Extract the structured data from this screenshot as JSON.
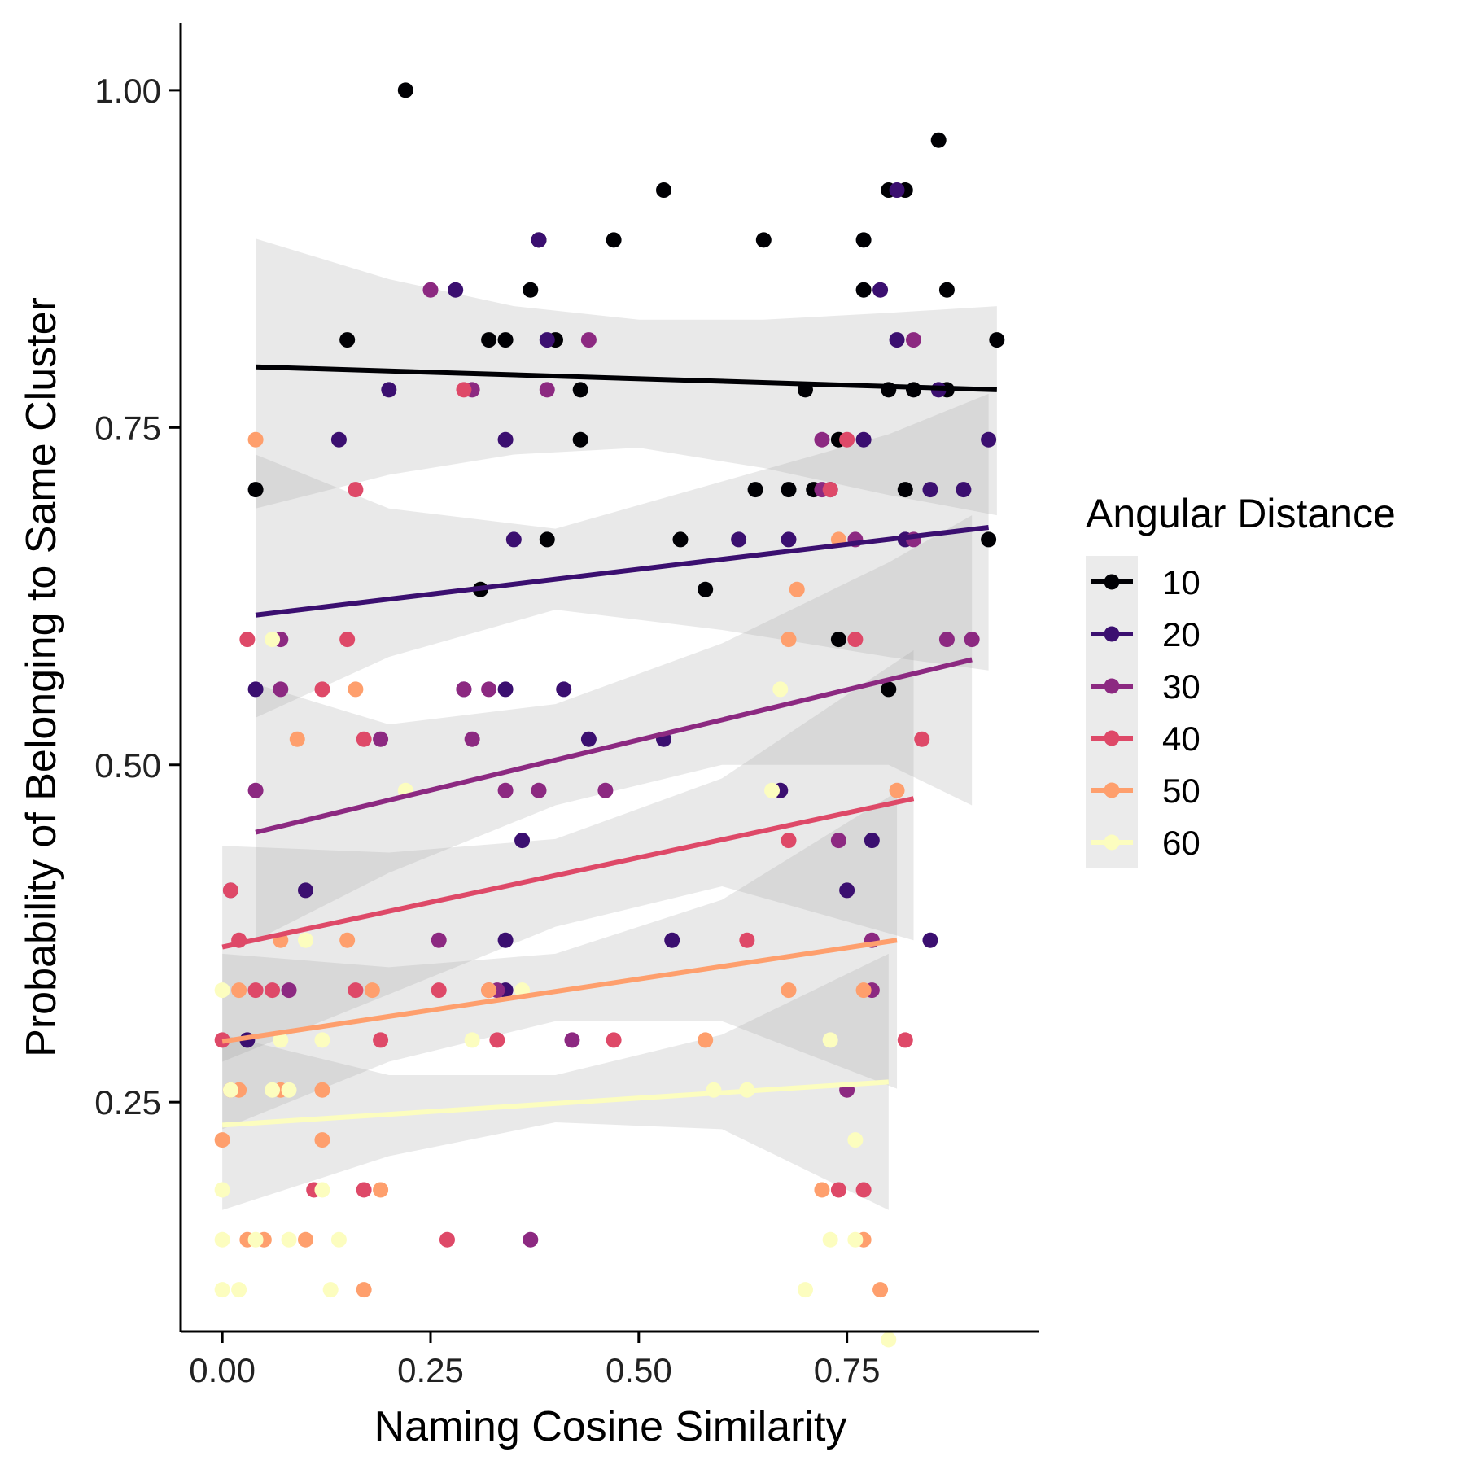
{
  "chart_data": {
    "type": "scatter",
    "xlabel": "Naming Cosine Similarity",
    "ylabel": "Probability of Belonging to Same Cluster",
    "xlim": [
      -0.05,
      0.98
    ],
    "ylim": [
      0.08,
      1.05
    ],
    "x_ticks": [
      0.0,
      0.25,
      0.5,
      0.75
    ],
    "x_tick_labels": [
      "0.00",
      "0.25",
      "0.50",
      "0.75"
    ],
    "y_ticks": [
      0.25,
      0.5,
      0.75,
      1.0
    ],
    "y_tick_labels": [
      "0.25",
      "0.50",
      "0.75",
      "1.00"
    ],
    "legend": {
      "title": "Angular Distance",
      "placement": "right"
    },
    "series": [
      {
        "name": "10",
        "color": "#000004",
        "points": [
          [
            0.22,
            1.0
          ],
          [
            0.86,
            0.963
          ],
          [
            0.53,
            0.926
          ],
          [
            0.8,
            0.926
          ],
          [
            0.82,
            0.926
          ],
          [
            0.38,
            0.889
          ],
          [
            0.47,
            0.889
          ],
          [
            0.65,
            0.889
          ],
          [
            0.77,
            0.889
          ],
          [
            0.37,
            0.852
          ],
          [
            0.77,
            0.852
          ],
          [
            0.87,
            0.852
          ],
          [
            0.15,
            0.815
          ],
          [
            0.32,
            0.815
          ],
          [
            0.34,
            0.815
          ],
          [
            0.4,
            0.815
          ],
          [
            0.93,
            0.815
          ],
          [
            0.43,
            0.778
          ],
          [
            0.7,
            0.778
          ],
          [
            0.8,
            0.778
          ],
          [
            0.83,
            0.778
          ],
          [
            0.87,
            0.778
          ],
          [
            0.43,
            0.741
          ],
          [
            0.74,
            0.741
          ],
          [
            0.04,
            0.704
          ],
          [
            0.64,
            0.704
          ],
          [
            0.68,
            0.704
          ],
          [
            0.71,
            0.704
          ],
          [
            0.82,
            0.704
          ],
          [
            0.39,
            0.667
          ],
          [
            0.55,
            0.667
          ],
          [
            0.92,
            0.667
          ],
          [
            0.31,
            0.63
          ],
          [
            0.58,
            0.63
          ],
          [
            0.74,
            0.593
          ],
          [
            0.8,
            0.556
          ]
        ],
        "fit": [
          [
            0.04,
            0.795
          ],
          [
            0.93,
            0.778
          ]
        ],
        "band": [
          [
            0.04,
            0.69,
            0.89
          ],
          [
            0.2,
            0.715,
            0.86
          ],
          [
            0.35,
            0.73,
            0.84
          ],
          [
            0.5,
            0.735,
            0.83
          ],
          [
            0.65,
            0.72,
            0.83
          ],
          [
            0.8,
            0.7,
            0.835
          ],
          [
            0.93,
            0.685,
            0.84
          ]
        ]
      },
      {
        "name": "20",
        "color": "#3B0F70",
        "points": [
          [
            0.81,
            0.926
          ],
          [
            0.38,
            0.889
          ],
          [
            0.79,
            0.852
          ],
          [
            0.28,
            0.852
          ],
          [
            0.39,
            0.815
          ],
          [
            0.81,
            0.815
          ],
          [
            0.2,
            0.778
          ],
          [
            0.86,
            0.778
          ],
          [
            0.14,
            0.741
          ],
          [
            0.34,
            0.741
          ],
          [
            0.77,
            0.741
          ],
          [
            0.92,
            0.741
          ],
          [
            0.73,
            0.704
          ],
          [
            0.85,
            0.704
          ],
          [
            0.89,
            0.704
          ],
          [
            0.35,
            0.667
          ],
          [
            0.62,
            0.667
          ],
          [
            0.68,
            0.667
          ],
          [
            0.82,
            0.667
          ],
          [
            0.04,
            0.556
          ],
          [
            0.29,
            0.556
          ],
          [
            0.34,
            0.556
          ],
          [
            0.41,
            0.556
          ],
          [
            0.44,
            0.519
          ],
          [
            0.53,
            0.519
          ],
          [
            0.67,
            0.481
          ],
          [
            0.36,
            0.444
          ],
          [
            0.78,
            0.444
          ],
          [
            0.1,
            0.407
          ],
          [
            0.75,
            0.407
          ],
          [
            0.34,
            0.37
          ],
          [
            0.54,
            0.37
          ],
          [
            0.85,
            0.37
          ],
          [
            0.34,
            0.333
          ],
          [
            0.03,
            0.296
          ]
        ],
        "fit": [
          [
            0.04,
            0.611
          ],
          [
            0.92,
            0.676
          ]
        ],
        "band": [
          [
            0.04,
            0.535,
            0.73
          ],
          [
            0.2,
            0.58,
            0.69
          ],
          [
            0.4,
            0.615,
            0.675
          ],
          [
            0.6,
            0.6,
            0.71
          ],
          [
            0.8,
            0.58,
            0.745
          ],
          [
            0.92,
            0.57,
            0.775
          ]
        ]
      },
      {
        "name": "30",
        "color": "#8C2981",
        "points": [
          [
            0.25,
            0.852
          ],
          [
            0.44,
            0.815
          ],
          [
            0.83,
            0.815
          ],
          [
            0.3,
            0.778
          ],
          [
            0.39,
            0.778
          ],
          [
            0.72,
            0.741
          ],
          [
            0.72,
            0.704
          ],
          [
            0.83,
            0.667
          ],
          [
            0.76,
            0.667
          ],
          [
            0.07,
            0.593
          ],
          [
            0.87,
            0.593
          ],
          [
            0.9,
            0.593
          ],
          [
            0.07,
            0.556
          ],
          [
            0.32,
            0.556
          ],
          [
            0.29,
            0.556
          ],
          [
            0.19,
            0.519
          ],
          [
            0.3,
            0.519
          ],
          [
            0.04,
            0.481
          ],
          [
            0.34,
            0.481
          ],
          [
            0.38,
            0.481
          ],
          [
            0.46,
            0.481
          ],
          [
            0.74,
            0.444
          ],
          [
            0.26,
            0.37
          ],
          [
            0.78,
            0.37
          ],
          [
            0.08,
            0.333
          ],
          [
            0.33,
            0.333
          ],
          [
            0.78,
            0.333
          ],
          [
            0.42,
            0.296
          ],
          [
            0.75,
            0.259
          ],
          [
            0.37,
            0.148
          ],
          [
            0.01,
            0.407
          ]
        ],
        "fit": [
          [
            0.04,
            0.45
          ],
          [
            0.9,
            0.578
          ]
        ],
        "band": [
          [
            0.04,
            0.37,
            0.56
          ],
          [
            0.2,
            0.42,
            0.53
          ],
          [
            0.4,
            0.47,
            0.545
          ],
          [
            0.6,
            0.5,
            0.59
          ],
          [
            0.8,
            0.5,
            0.65
          ],
          [
            0.9,
            0.47,
            0.685
          ]
        ]
      },
      {
        "name": "40",
        "color": "#DE4968",
        "points": [
          [
            0.29,
            0.778
          ],
          [
            0.75,
            0.741
          ],
          [
            0.16,
            0.704
          ],
          [
            0.73,
            0.704
          ],
          [
            0.03,
            0.593
          ],
          [
            0.15,
            0.593
          ],
          [
            0.76,
            0.593
          ],
          [
            0.12,
            0.556
          ],
          [
            0.17,
            0.519
          ],
          [
            0.84,
            0.519
          ],
          [
            0.68,
            0.444
          ],
          [
            0.02,
            0.37
          ],
          [
            0.63,
            0.37
          ],
          [
            0.04,
            0.333
          ],
          [
            0.06,
            0.333
          ],
          [
            0.16,
            0.333
          ],
          [
            0.26,
            0.333
          ],
          [
            0.32,
            0.333
          ],
          [
            0.19,
            0.296
          ],
          [
            0.33,
            0.296
          ],
          [
            0.47,
            0.296
          ],
          [
            0.82,
            0.296
          ],
          [
            0.01,
            0.259
          ],
          [
            0.11,
            0.185
          ],
          [
            0.17,
            0.185
          ],
          [
            0.74,
            0.185
          ],
          [
            0.77,
            0.185
          ],
          [
            0.27,
            0.148
          ],
          [
            0.0,
            0.296
          ],
          [
            0.01,
            0.407
          ]
        ],
        "fit": [
          [
            0.0,
            0.365
          ],
          [
            0.83,
            0.475
          ]
        ],
        "band": [
          [
            0.0,
            0.28,
            0.44
          ],
          [
            0.2,
            0.33,
            0.435
          ],
          [
            0.4,
            0.38,
            0.445
          ],
          [
            0.6,
            0.41,
            0.49
          ],
          [
            0.83,
            0.37,
            0.585
          ]
        ]
      },
      {
        "name": "50",
        "color": "#FE9F6D",
        "points": [
          [
            0.04,
            0.741
          ],
          [
            0.74,
            0.667
          ],
          [
            0.69,
            0.63
          ],
          [
            0.68,
            0.593
          ],
          [
            0.16,
            0.556
          ],
          [
            0.09,
            0.519
          ],
          [
            0.81,
            0.481
          ],
          [
            0.07,
            0.37
          ],
          [
            0.15,
            0.37
          ],
          [
            0.02,
            0.333
          ],
          [
            0.18,
            0.333
          ],
          [
            0.68,
            0.333
          ],
          [
            0.77,
            0.333
          ],
          [
            0.58,
            0.296
          ],
          [
            0.02,
            0.259
          ],
          [
            0.07,
            0.259
          ],
          [
            0.12,
            0.259
          ],
          [
            0.0,
            0.222
          ],
          [
            0.12,
            0.222
          ],
          [
            0.19,
            0.185
          ],
          [
            0.72,
            0.185
          ],
          [
            0.03,
            0.148
          ],
          [
            0.05,
            0.148
          ],
          [
            0.1,
            0.148
          ],
          [
            0.77,
            0.148
          ],
          [
            0.17,
            0.111
          ],
          [
            0.79,
            0.111
          ],
          [
            0.32,
            0.333
          ]
        ],
        "fit": [
          [
            0.0,
            0.295
          ],
          [
            0.81,
            0.37
          ]
        ],
        "band": [
          [
            0.0,
            0.23,
            0.36
          ],
          [
            0.2,
            0.28,
            0.35
          ],
          [
            0.4,
            0.31,
            0.36
          ],
          [
            0.6,
            0.31,
            0.4
          ],
          [
            0.81,
            0.26,
            0.48
          ]
        ]
      },
      {
        "name": "60",
        "color": "#FCFDBF",
        "points": [
          [
            0.06,
            0.593
          ],
          [
            0.67,
            0.556
          ],
          [
            0.22,
            0.481
          ],
          [
            0.66,
            0.481
          ],
          [
            0.1,
            0.37
          ],
          [
            0.36,
            0.333
          ],
          [
            0.0,
            0.333
          ],
          [
            0.07,
            0.296
          ],
          [
            0.12,
            0.296
          ],
          [
            0.3,
            0.296
          ],
          [
            0.73,
            0.296
          ],
          [
            0.01,
            0.259
          ],
          [
            0.06,
            0.259
          ],
          [
            0.08,
            0.259
          ],
          [
            0.59,
            0.259
          ],
          [
            0.63,
            0.259
          ],
          [
            0.76,
            0.222
          ],
          [
            0.0,
            0.185
          ],
          [
            0.12,
            0.185
          ],
          [
            0.0,
            0.148
          ],
          [
            0.04,
            0.148
          ],
          [
            0.08,
            0.148
          ],
          [
            0.14,
            0.148
          ],
          [
            0.73,
            0.148
          ],
          [
            0.76,
            0.148
          ],
          [
            0.0,
            0.111
          ],
          [
            0.02,
            0.111
          ],
          [
            0.13,
            0.111
          ],
          [
            0.7,
            0.111
          ],
          [
            0.8,
            0.074
          ]
        ],
        "fit": [
          [
            0.0,
            0.233
          ],
          [
            0.8,
            0.265
          ]
        ],
        "band": [
          [
            0.0,
            0.17,
            0.3
          ],
          [
            0.2,
            0.21,
            0.27
          ],
          [
            0.4,
            0.235,
            0.27
          ],
          [
            0.6,
            0.23,
            0.3
          ],
          [
            0.8,
            0.17,
            0.36
          ]
        ]
      }
    ]
  }
}
